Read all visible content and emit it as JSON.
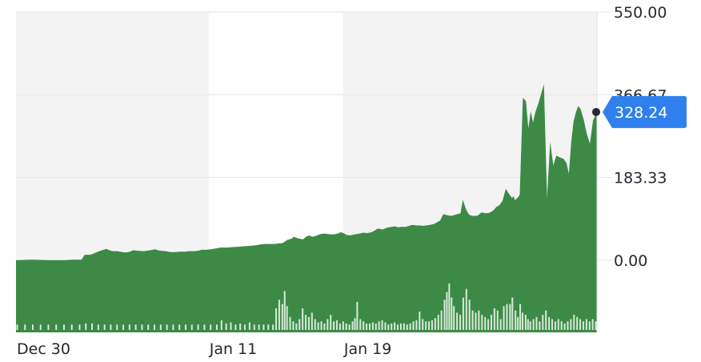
{
  "chart_data": {
    "type": "area",
    "y_ticks": [
      {
        "value": 550,
        "label": "550.00"
      },
      {
        "value": 366.67,
        "label": "366.67"
      },
      {
        "value": 183.33,
        "label": "183.33"
      },
      {
        "value": 0,
        "label": "0.00"
      }
    ],
    "ylim": [
      -160,
      550
    ],
    "x_ticks": [
      {
        "index": 0,
        "label": "Dec 30"
      },
      {
        "index": 63,
        "label": "Jan 11"
      },
      {
        "index": 107,
        "label": "Jan 19"
      }
    ],
    "shaded_sessions": [
      [
        0,
        63
      ],
      [
        107,
        190
      ]
    ],
    "current_price": {
      "value": 328.24,
      "label": "328.24"
    },
    "colors": {
      "area": "#3d8a47",
      "volume": "#d7ead8",
      "session_shade": "#f3f3f3",
      "grid": "#e6e6e6",
      "price_badge": "#2f80ed",
      "price_dot": "#232a31"
    },
    "price_anchors": [
      [
        0,
        0
      ],
      [
        20,
        1
      ],
      [
        45,
        0
      ],
      [
        62,
        0
      ],
      [
        72,
        1
      ],
      [
        84,
        1
      ],
      [
        88,
        12
      ],
      [
        95,
        12
      ],
      [
        100,
        15
      ],
      [
        104,
        18
      ],
      [
        110,
        22
      ],
      [
        116,
        25
      ],
      [
        120,
        22
      ],
      [
        124,
        20
      ],
      [
        130,
        20
      ],
      [
        136,
        18
      ],
      [
        141,
        17
      ],
      [
        146,
        19
      ],
      [
        150,
        22
      ],
      [
        156,
        21
      ],
      [
        164,
        20
      ],
      [
        172,
        22
      ],
      [
        178,
        24
      ],
      [
        184,
        21
      ],
      [
        192,
        20
      ],
      [
        198,
        18
      ],
      [
        204,
        18
      ],
      [
        210,
        19
      ],
      [
        216,
        19
      ],
      [
        222,
        20
      ],
      [
        228,
        20
      ],
      [
        234,
        21
      ],
      [
        238,
        23
      ],
      [
        244,
        23
      ],
      [
        250,
        24
      ],
      [
        256,
        26
      ],
      [
        262,
        28
      ],
      [
        270,
        28
      ],
      [
        278,
        29
      ],
      [
        286,
        30
      ],
      [
        294,
        31
      ],
      [
        302,
        32
      ],
      [
        308,
        33
      ],
      [
        314,
        35
      ],
      [
        320,
        36
      ],
      [
        326,
        36
      ],
      [
        332,
        36
      ],
      [
        336,
        37
      ],
      [
        342,
        38
      ],
      [
        348,
        45
      ],
      [
        354,
        48
      ],
      [
        356,
        52
      ],
      [
        362,
        48
      ],
      [
        368,
        46
      ],
      [
        372,
        52
      ],
      [
        376,
        55
      ],
      [
        380,
        52
      ],
      [
        385,
        54
      ],
      [
        390,
        58
      ],
      [
        396,
        59
      ],
      [
        400,
        58
      ],
      [
        405,
        57
      ],
      [
        410,
        58
      ],
      [
        414,
        60
      ],
      [
        416,
        62
      ],
      [
        420,
        60
      ],
      [
        424,
        56
      ],
      [
        428,
        55
      ],
      [
        434,
        57
      ],
      [
        440,
        59
      ],
      [
        446,
        61
      ],
      [
        450,
        60
      ],
      [
        456,
        62
      ],
      [
        460,
        66
      ],
      [
        464,
        70
      ],
      [
        470,
        68
      ],
      [
        476,
        72
      ],
      [
        482,
        74
      ],
      [
        486,
        75
      ],
      [
        490,
        73
      ],
      [
        494,
        74
      ],
      [
        500,
        74
      ],
      [
        504,
        76
      ],
      [
        508,
        78
      ],
      [
        514,
        77
      ],
      [
        518,
        77
      ],
      [
        522,
        76
      ],
      [
        526,
        77
      ],
      [
        530,
        78
      ],
      [
        536,
        80
      ],
      [
        544,
        88
      ],
      [
        548,
        102
      ],
      [
        552,
        100
      ],
      [
        558,
        98
      ],
      [
        562,
        100
      ],
      [
        566,
        102
      ],
      [
        570,
        104
      ],
      [
        573,
        134
      ],
      [
        577,
        113
      ],
      [
        580,
        103
      ],
      [
        583,
        99
      ],
      [
        587,
        98
      ],
      [
        592,
        99
      ],
      [
        597,
        106
      ],
      [
        602,
        104
      ],
      [
        607,
        105
      ],
      [
        612,
        110
      ],
      [
        616,
        118
      ],
      [
        620,
        122
      ],
      [
        624,
        132
      ],
      [
        628,
        158
      ],
      [
        633,
        145
      ],
      [
        636,
        138
      ],
      [
        638,
        142
      ],
      [
        640,
        133
      ],
      [
        644,
        140
      ],
      [
        646,
        145
      ],
      [
        650,
        360
      ],
      [
        654,
        352
      ],
      [
        657,
        292
      ],
      [
        660,
        330
      ],
      [
        663,
        305
      ],
      [
        666,
        328
      ],
      [
        670,
        348
      ],
      [
        674,
        372
      ],
      [
        677,
        390
      ],
      [
        681,
        138
      ],
      [
        685,
        262
      ],
      [
        689,
        210
      ],
      [
        693,
        232
      ],
      [
        697,
        228
      ],
      [
        702,
        225
      ],
      [
        706,
        215
      ],
      [
        709,
        192
      ],
      [
        712,
        262
      ],
      [
        715,
        308
      ],
      [
        718,
        328
      ],
      [
        721,
        342
      ],
      [
        724,
        335
      ],
      [
        728,
        312
      ],
      [
        732,
        280
      ],
      [
        736,
        258
      ],
      [
        740,
        310
      ],
      [
        745,
        328
      ]
    ],
    "volume_bars": [
      [
        0,
        5
      ],
      [
        10,
        5
      ],
      [
        20,
        5
      ],
      [
        30,
        5
      ],
      [
        40,
        5
      ],
      [
        50,
        5
      ],
      [
        60,
        5
      ],
      [
        70,
        5
      ],
      [
        80,
        5
      ],
      [
        88,
        6
      ],
      [
        96,
        6
      ],
      [
        104,
        5
      ],
      [
        112,
        5
      ],
      [
        120,
        5
      ],
      [
        128,
        5
      ],
      [
        136,
        5
      ],
      [
        144,
        5
      ],
      [
        152,
        5
      ],
      [
        160,
        5
      ],
      [
        168,
        5
      ],
      [
        176,
        5
      ],
      [
        184,
        5
      ],
      [
        192,
        5
      ],
      [
        200,
        5
      ],
      [
        208,
        5
      ],
      [
        216,
        5
      ],
      [
        224,
        5
      ],
      [
        232,
        5
      ],
      [
        240,
        5
      ],
      [
        248,
        5
      ],
      [
        256,
        5
      ],
      [
        262,
        9
      ],
      [
        268,
        6
      ],
      [
        274,
        7
      ],
      [
        280,
        5
      ],
      [
        286,
        6
      ],
      [
        292,
        5
      ],
      [
        298,
        7
      ],
      [
        304,
        5
      ],
      [
        310,
        5
      ],
      [
        316,
        5
      ],
      [
        322,
        5
      ],
      [
        328,
        5
      ],
      [
        332,
        20
      ],
      [
        336,
        28
      ],
      [
        340,
        24
      ],
      [
        343,
        36
      ],
      [
        346,
        22
      ],
      [
        350,
        12
      ],
      [
        354,
        8
      ],
      [
        358,
        6
      ],
      [
        362,
        10
      ],
      [
        366,
        20
      ],
      [
        370,
        14
      ],
      [
        374,
        12
      ],
      [
        378,
        16
      ],
      [
        382,
        10
      ],
      [
        386,
        7
      ],
      [
        390,
        8
      ],
      [
        394,
        6
      ],
      [
        398,
        10
      ],
      [
        402,
        14
      ],
      [
        406,
        8
      ],
      [
        410,
        9
      ],
      [
        414,
        6
      ],
      [
        418,
        8
      ],
      [
        422,
        6
      ],
      [
        426,
        5
      ],
      [
        430,
        8
      ],
      [
        433,
        11
      ],
      [
        436,
        26
      ],
      [
        440,
        10
      ],
      [
        444,
        8
      ],
      [
        448,
        6
      ],
      [
        452,
        6
      ],
      [
        456,
        7
      ],
      [
        460,
        6
      ],
      [
        464,
        8
      ],
      [
        468,
        9
      ],
      [
        472,
        7
      ],
      [
        476,
        5
      ],
      [
        480,
        6
      ],
      [
        484,
        7
      ],
      [
        488,
        5
      ],
      [
        492,
        6
      ],
      [
        496,
        6
      ],
      [
        500,
        5
      ],
      [
        504,
        6
      ],
      [
        508,
        8
      ],
      [
        512,
        9
      ],
      [
        516,
        17
      ],
      [
        520,
        10
      ],
      [
        524,
        8
      ],
      [
        528,
        8
      ],
      [
        532,
        9
      ],
      [
        536,
        11
      ],
      [
        540,
        14
      ],
      [
        544,
        18
      ],
      [
        548,
        28
      ],
      [
        551,
        35
      ],
      [
        554,
        43
      ],
      [
        557,
        30
      ],
      [
        560,
        22
      ],
      [
        564,
        16
      ],
      [
        568,
        14
      ],
      [
        572,
        30
      ],
      [
        576,
        38
      ],
      [
        580,
        28
      ],
      [
        584,
        18
      ],
      [
        588,
        16
      ],
      [
        592,
        18
      ],
      [
        596,
        14
      ],
      [
        600,
        12
      ],
      [
        604,
        10
      ],
      [
        608,
        14
      ],
      [
        612,
        20
      ],
      [
        616,
        18
      ],
      [
        620,
        10
      ],
      [
        624,
        22
      ],
      [
        628,
        24
      ],
      [
        632,
        24
      ],
      [
        635,
        30
      ],
      [
        639,
        18
      ],
      [
        642,
        12
      ],
      [
        645,
        24
      ],
      [
        648,
        16
      ],
      [
        652,
        14
      ],
      [
        655,
        10
      ],
      [
        658,
        8
      ],
      [
        662,
        10
      ],
      [
        666,
        12
      ],
      [
        670,
        8
      ],
      [
        674,
        14
      ],
      [
        678,
        18
      ],
      [
        682,
        12
      ],
      [
        686,
        10
      ],
      [
        690,
        8
      ],
      [
        694,
        10
      ],
      [
        698,
        8
      ],
      [
        702,
        6
      ],
      [
        706,
        8
      ],
      [
        710,
        10
      ],
      [
        714,
        14
      ],
      [
        718,
        12
      ],
      [
        722,
        10
      ],
      [
        726,
        8
      ],
      [
        730,
        10
      ],
      [
        734,
        8
      ],
      [
        738,
        10
      ],
      [
        742,
        8
      ]
    ]
  }
}
